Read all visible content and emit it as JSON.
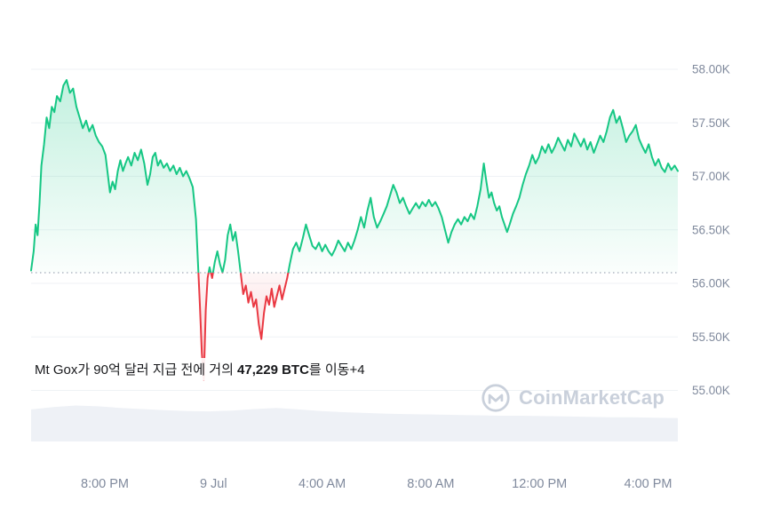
{
  "watermark": {
    "text": "CoinMarketCap"
  },
  "annotation": {
    "prefix": "Mt Gox가 90억 달러 지급 전에 거의 ",
    "bold": "47,229 BTC",
    "suffix": "를 이동+4"
  },
  "chart_data": {
    "type": "area",
    "title": "",
    "xlabel": "",
    "ylabel": "",
    "legend": "none",
    "grid": "horizontal",
    "baseline_value": 56.1,
    "y_axis": {
      "side": "right",
      "max_value": 58.0,
      "ticks": [
        {
          "label": "58.00K",
          "value": 58.0
        },
        {
          "label": "57.50K",
          "value": 57.5
        },
        {
          "label": "57.00K",
          "value": 57.0
        },
        {
          "label": "56.50K",
          "value": 56.5
        },
        {
          "label": "56.00K",
          "value": 56.0
        },
        {
          "label": "55.50K",
          "value": 55.5
        },
        {
          "label": "55.00K",
          "value": 55.0
        }
      ]
    },
    "x_axis": {
      "ticks": [
        {
          "label": "8:00 PM",
          "pos": 0.114
        },
        {
          "label": "9 Jul",
          "pos": 0.282
        },
        {
          "label": "4:00 AM",
          "pos": 0.45
        },
        {
          "label": "8:00 AM",
          "pos": 0.618
        },
        {
          "label": "12:00 PM",
          "pos": 0.786
        },
        {
          "label": "4:00 PM",
          "pos": 0.954
        }
      ]
    },
    "colors": {
      "up": "#16c784",
      "down": "#ea3943",
      "grid": "#eff2f5",
      "axis_text": "#808a9d",
      "baseline": "#8a94a6",
      "volume": "#eef1f6"
    },
    "series": [
      [
        0.0,
        56.12
      ],
      [
        0.004,
        56.3
      ],
      [
        0.007,
        56.55
      ],
      [
        0.01,
        56.45
      ],
      [
        0.013,
        56.75
      ],
      [
        0.016,
        57.1
      ],
      [
        0.02,
        57.3
      ],
      [
        0.024,
        57.55
      ],
      [
        0.028,
        57.45
      ],
      [
        0.032,
        57.65
      ],
      [
        0.036,
        57.6
      ],
      [
        0.04,
        57.75
      ],
      [
        0.045,
        57.7
      ],
      [
        0.05,
        57.85
      ],
      [
        0.055,
        57.9
      ],
      [
        0.06,
        57.78
      ],
      [
        0.065,
        57.82
      ],
      [
        0.07,
        57.65
      ],
      [
        0.075,
        57.55
      ],
      [
        0.08,
        57.45
      ],
      [
        0.085,
        57.52
      ],
      [
        0.09,
        57.42
      ],
      [
        0.095,
        57.48
      ],
      [
        0.1,
        57.38
      ],
      [
        0.105,
        57.32
      ],
      [
        0.11,
        57.28
      ],
      [
        0.115,
        57.2
      ],
      [
        0.118,
        57.05
      ],
      [
        0.122,
        56.85
      ],
      [
        0.126,
        56.95
      ],
      [
        0.13,
        56.88
      ],
      [
        0.134,
        57.05
      ],
      [
        0.138,
        57.15
      ],
      [
        0.142,
        57.05
      ],
      [
        0.146,
        57.12
      ],
      [
        0.15,
        57.18
      ],
      [
        0.155,
        57.1
      ],
      [
        0.16,
        57.22
      ],
      [
        0.165,
        57.15
      ],
      [
        0.17,
        57.25
      ],
      [
        0.175,
        57.12
      ],
      [
        0.18,
        56.92
      ],
      [
        0.184,
        57.02
      ],
      [
        0.188,
        57.18
      ],
      [
        0.192,
        57.22
      ],
      [
        0.196,
        57.1
      ],
      [
        0.2,
        57.15
      ],
      [
        0.205,
        57.08
      ],
      [
        0.21,
        57.12
      ],
      [
        0.215,
        57.05
      ],
      [
        0.22,
        57.1
      ],
      [
        0.225,
        57.02
      ],
      [
        0.23,
        57.08
      ],
      [
        0.235,
        57.0
      ],
      [
        0.24,
        57.05
      ],
      [
        0.245,
        56.98
      ],
      [
        0.25,
        56.9
      ],
      [
        0.255,
        56.6
      ],
      [
        0.258,
        56.2
      ],
      [
        0.261,
        55.8
      ],
      [
        0.264,
        55.35
      ],
      [
        0.267,
        55.1
      ],
      [
        0.27,
        55.75
      ],
      [
        0.273,
        56.05
      ],
      [
        0.276,
        56.15
      ],
      [
        0.28,
        56.05
      ],
      [
        0.284,
        56.2
      ],
      [
        0.288,
        56.3
      ],
      [
        0.292,
        56.18
      ],
      [
        0.296,
        56.1
      ],
      [
        0.3,
        56.22
      ],
      [
        0.304,
        56.45
      ],
      [
        0.308,
        56.55
      ],
      [
        0.312,
        56.4
      ],
      [
        0.316,
        56.48
      ],
      [
        0.32,
        56.3
      ],
      [
        0.324,
        56.1
      ],
      [
        0.328,
        55.9
      ],
      [
        0.332,
        55.98
      ],
      [
        0.336,
        55.82
      ],
      [
        0.34,
        55.92
      ],
      [
        0.344,
        55.78
      ],
      [
        0.348,
        55.85
      ],
      [
        0.352,
        55.62
      ],
      [
        0.356,
        55.48
      ],
      [
        0.36,
        55.72
      ],
      [
        0.364,
        55.88
      ],
      [
        0.368,
        55.8
      ],
      [
        0.372,
        55.95
      ],
      [
        0.376,
        55.78
      ],
      [
        0.38,
        55.88
      ],
      [
        0.384,
        55.98
      ],
      [
        0.388,
        55.85
      ],
      [
        0.392,
        55.95
      ],
      [
        0.396,
        56.05
      ],
      [
        0.4,
        56.18
      ],
      [
        0.405,
        56.32
      ],
      [
        0.41,
        56.38
      ],
      [
        0.415,
        56.3
      ],
      [
        0.42,
        56.42
      ],
      [
        0.425,
        56.55
      ],
      [
        0.43,
        56.45
      ],
      [
        0.435,
        56.35
      ],
      [
        0.44,
        56.32
      ],
      [
        0.445,
        56.38
      ],
      [
        0.45,
        56.3
      ],
      [
        0.455,
        56.36
      ],
      [
        0.46,
        56.3
      ],
      [
        0.465,
        56.26
      ],
      [
        0.47,
        56.32
      ],
      [
        0.475,
        56.4
      ],
      [
        0.48,
        56.35
      ],
      [
        0.485,
        56.3
      ],
      [
        0.49,
        56.38
      ],
      [
        0.495,
        56.32
      ],
      [
        0.5,
        56.4
      ],
      [
        0.505,
        56.5
      ],
      [
        0.51,
        56.62
      ],
      [
        0.515,
        56.52
      ],
      [
        0.52,
        56.68
      ],
      [
        0.525,
        56.8
      ],
      [
        0.53,
        56.62
      ],
      [
        0.535,
        56.52
      ],
      [
        0.54,
        56.58
      ],
      [
        0.545,
        56.65
      ],
      [
        0.55,
        56.72
      ],
      [
        0.555,
        56.82
      ],
      [
        0.56,
        56.92
      ],
      [
        0.565,
        56.85
      ],
      [
        0.57,
        56.75
      ],
      [
        0.575,
        56.8
      ],
      [
        0.58,
        56.72
      ],
      [
        0.585,
        56.65
      ],
      [
        0.59,
        56.7
      ],
      [
        0.595,
        56.75
      ],
      [
        0.6,
        56.7
      ],
      [
        0.605,
        56.76
      ],
      [
        0.61,
        56.72
      ],
      [
        0.615,
        56.78
      ],
      [
        0.62,
        56.72
      ],
      [
        0.625,
        56.76
      ],
      [
        0.63,
        56.7
      ],
      [
        0.635,
        56.62
      ],
      [
        0.64,
        56.5
      ],
      [
        0.645,
        56.38
      ],
      [
        0.65,
        56.48
      ],
      [
        0.655,
        56.55
      ],
      [
        0.66,
        56.6
      ],
      [
        0.665,
        56.55
      ],
      [
        0.67,
        56.62
      ],
      [
        0.675,
        56.58
      ],
      [
        0.68,
        56.65
      ],
      [
        0.685,
        56.6
      ],
      [
        0.69,
        56.72
      ],
      [
        0.695,
        56.88
      ],
      [
        0.7,
        57.12
      ],
      [
        0.704,
        56.95
      ],
      [
        0.708,
        56.8
      ],
      [
        0.712,
        56.85
      ],
      [
        0.716,
        56.75
      ],
      [
        0.72,
        56.68
      ],
      [
        0.724,
        56.72
      ],
      [
        0.728,
        56.62
      ],
      [
        0.732,
        56.55
      ],
      [
        0.736,
        56.48
      ],
      [
        0.74,
        56.55
      ],
      [
        0.745,
        56.65
      ],
      [
        0.75,
        56.72
      ],
      [
        0.755,
        56.8
      ],
      [
        0.76,
        56.92
      ],
      [
        0.765,
        57.02
      ],
      [
        0.77,
        57.1
      ],
      [
        0.775,
        57.2
      ],
      [
        0.78,
        57.12
      ],
      [
        0.785,
        57.18
      ],
      [
        0.79,
        57.28
      ],
      [
        0.795,
        57.22
      ],
      [
        0.8,
        57.3
      ],
      [
        0.805,
        57.22
      ],
      [
        0.81,
        57.28
      ],
      [
        0.815,
        57.36
      ],
      [
        0.82,
        57.3
      ],
      [
        0.825,
        57.24
      ],
      [
        0.83,
        57.34
      ],
      [
        0.835,
        57.28
      ],
      [
        0.84,
        57.4
      ],
      [
        0.845,
        57.34
      ],
      [
        0.85,
        57.28
      ],
      [
        0.855,
        57.35
      ],
      [
        0.86,
        57.25
      ],
      [
        0.865,
        57.32
      ],
      [
        0.87,
        57.22
      ],
      [
        0.875,
        57.3
      ],
      [
        0.88,
        57.38
      ],
      [
        0.885,
        57.32
      ],
      [
        0.89,
        57.42
      ],
      [
        0.895,
        57.55
      ],
      [
        0.9,
        57.62
      ],
      [
        0.905,
        57.5
      ],
      [
        0.91,
        57.56
      ],
      [
        0.915,
        57.45
      ],
      [
        0.92,
        57.32
      ],
      [
        0.925,
        57.38
      ],
      [
        0.93,
        57.42
      ],
      [
        0.935,
        57.48
      ],
      [
        0.94,
        57.35
      ],
      [
        0.945,
        57.28
      ],
      [
        0.95,
        57.22
      ],
      [
        0.955,
        57.3
      ],
      [
        0.96,
        57.18
      ],
      [
        0.965,
        57.1
      ],
      [
        0.97,
        57.16
      ],
      [
        0.975,
        57.08
      ],
      [
        0.98,
        57.04
      ],
      [
        0.985,
        57.12
      ],
      [
        0.99,
        57.06
      ],
      [
        0.995,
        57.1
      ],
      [
        1.0,
        57.05
      ]
    ],
    "volume": [
      0.82,
      0.88,
      0.92,
      0.9,
      0.86,
      0.83,
      0.8,
      0.78,
      0.77,
      0.79,
      0.83,
      0.86,
      0.82,
      0.78,
      0.75,
      0.73,
      0.71,
      0.7,
      0.69,
      0.68,
      0.67,
      0.66,
      0.66,
      0.65,
      0.64,
      0.63,
      0.62,
      0.62,
      0.61,
      0.6
    ]
  }
}
